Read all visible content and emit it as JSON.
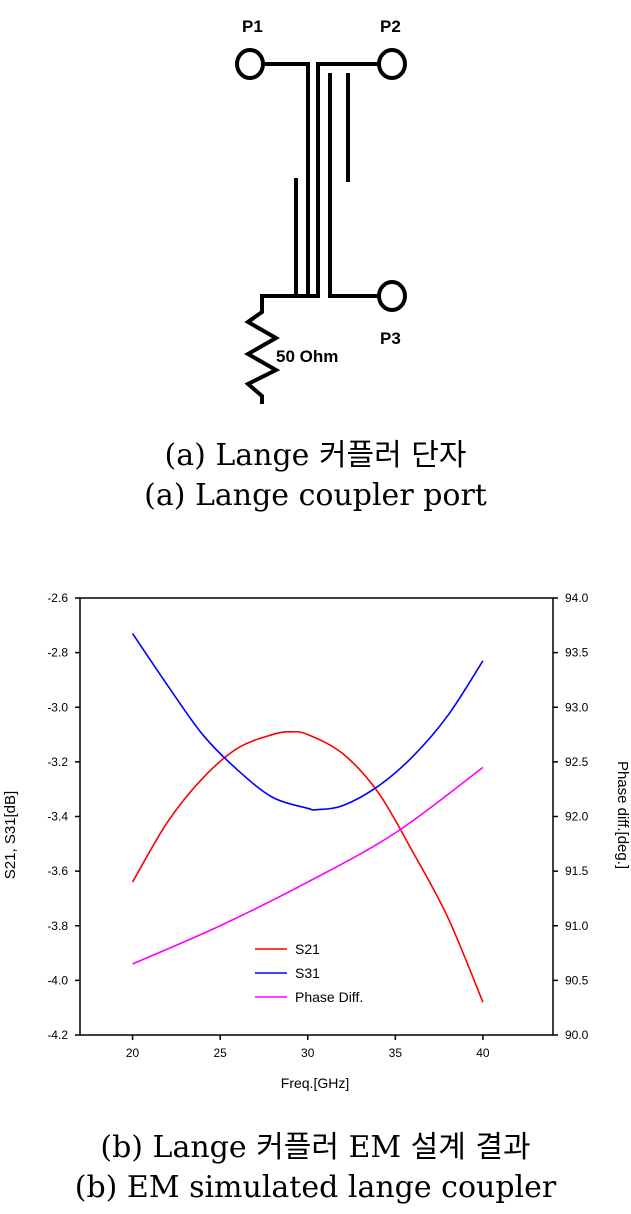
{
  "figure_a": {
    "ports": [
      "P1",
      "P2",
      "P3"
    ],
    "resistor_label": "50 Ohm",
    "caption_korean": "(a) Lange 커플러 단자",
    "caption_english": "(a) Lange coupler port"
  },
  "figure_b": {
    "caption_korean": "(b) Lange 커플러 EM 설계 결과",
    "caption_english": "(b) EM simulated lange coupler"
  },
  "chart_data": {
    "type": "line",
    "xlabel": "Freq.[GHz]",
    "ylabel": "S21, S31[dB]",
    "y2label": "Phase diff.[deg.]",
    "xlim": [
      17,
      44
    ],
    "ylim": [
      -4.2,
      -2.6
    ],
    "y2lim": [
      90.0,
      94.0
    ],
    "xticks": [
      "20",
      "25",
      "30",
      "35",
      "40"
    ],
    "xtick_values": [
      20,
      25,
      30,
      35,
      40
    ],
    "yticks": [
      "-2.6",
      "-2.8",
      "-3.0",
      "-3.2",
      "-3.4",
      "-3.6",
      "-3.8",
      "-4.0",
      "-4.2"
    ],
    "ytick_values": [
      -2.6,
      -2.8,
      -3.0,
      -3.2,
      -3.4,
      -3.6,
      -3.8,
      -4.0,
      -4.2
    ],
    "y2ticks": [
      "94.0",
      "93.5",
      "93.0",
      "92.5",
      "92.0",
      "91.5",
      "91.0",
      "90.5",
      "90.0"
    ],
    "y2tick_values": [
      94.0,
      93.5,
      93.0,
      92.5,
      92.0,
      91.5,
      91.0,
      90.5,
      90.0
    ],
    "legend_position": "bottom-center",
    "grid": false,
    "series": [
      {
        "name": "S21",
        "axis": "left",
        "color": "#ff0000",
        "x": [
          20,
          22,
          24,
          26,
          28,
          29,
          30,
          32,
          34,
          36,
          38,
          40
        ],
        "values": [
          -3.64,
          -3.42,
          -3.26,
          -3.15,
          -3.1,
          -3.09,
          -3.1,
          -3.17,
          -3.31,
          -3.53,
          -3.77,
          -4.08
        ]
      },
      {
        "name": "S31",
        "axis": "left",
        "color": "#0000ff",
        "x": [
          20,
          22,
          24,
          26,
          28,
          30,
          30.5,
          32,
          34,
          36,
          38,
          40
        ],
        "values": [
          -2.73,
          -2.92,
          -3.1,
          -3.23,
          -3.33,
          -3.37,
          -3.375,
          -3.36,
          -3.29,
          -3.18,
          -3.03,
          -2.83
        ]
      },
      {
        "name": "Phase Diff.",
        "axis": "right",
        "color": "#ff00ff",
        "x": [
          20,
          25,
          30,
          35,
          40
        ],
        "values": [
          90.65,
          91.0,
          91.4,
          91.85,
          92.45
        ]
      }
    ]
  }
}
